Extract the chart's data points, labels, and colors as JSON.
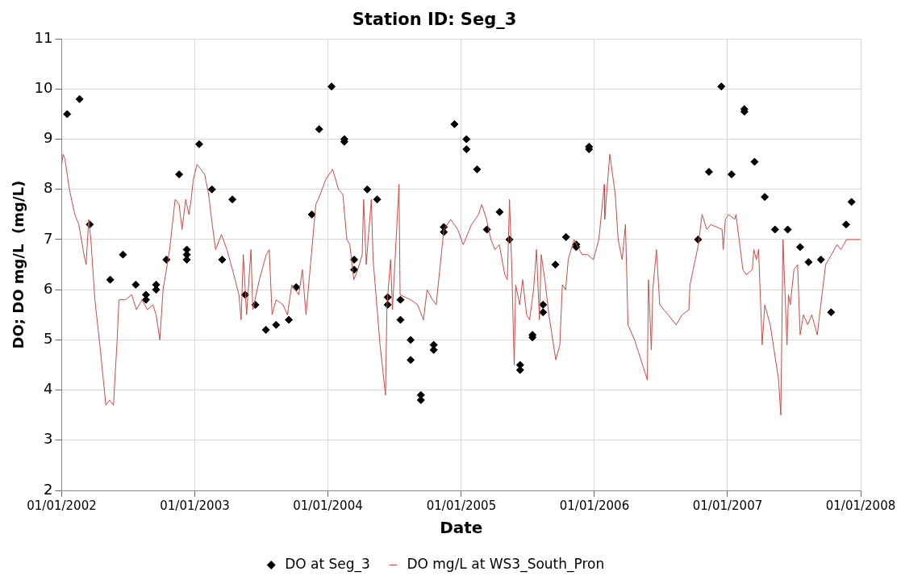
{
  "chart_data": {
    "type": "line",
    "title": "Station ID: Seg_3",
    "xlabel": "Date",
    "ylabel": "DO; DO mg/L  (mg/L)",
    "xlim": [
      "2002-01-01",
      "2008-01-01"
    ],
    "xticks": [
      {
        "value": "2002-01-01",
        "label": "01/01/2002"
      },
      {
        "value": "2003-01-01",
        "label": "01/01/2003"
      },
      {
        "value": "2004-01-01",
        "label": "01/01/2004"
      },
      {
        "value": "2005-01-01",
        "label": "01/01/2005"
      },
      {
        "value": "2006-01-01",
        "label": "01/01/2006"
      },
      {
        "value": "2007-01-01",
        "label": "01/01/2007"
      },
      {
        "value": "2008-01-01",
        "label": "01/01/2008"
      }
    ],
    "ylim": [
      2,
      11
    ],
    "yticks": [
      2,
      3,
      4,
      5,
      6,
      7,
      8,
      9,
      10,
      11
    ],
    "grid": true,
    "legend": "bottom",
    "series": [
      {
        "name": "DO at Seg_3",
        "type": "scatter",
        "marker": "diamond",
        "color": "#000000",
        "x": [
          "2002-01-16",
          "2002-02-19",
          "2002-03-19",
          "2002-05-14",
          "2002-06-18",
          "2002-07-23",
          "2002-08-20",
          "2002-08-20",
          "2002-09-17",
          "2002-09-17",
          "2002-10-15",
          "2002-11-19",
          "2002-12-10",
          "2002-12-10",
          "2002-12-10",
          "2003-01-13",
          "2003-02-17",
          "2003-03-17",
          "2003-04-14",
          "2003-05-19",
          "2003-06-16",
          "2003-07-15",
          "2003-08-12",
          "2003-09-16",
          "2003-10-06",
          "2003-11-18",
          "2003-12-08",
          "2004-01-11",
          "2004-02-15",
          "2004-02-15",
          "2004-03-13",
          "2004-03-13",
          "2004-04-18",
          "2004-05-15",
          "2004-06-13",
          "2004-06-13",
          "2004-07-18",
          "2004-07-18",
          "2004-08-15",
          "2004-08-15",
          "2004-09-12",
          "2004-09-12",
          "2004-10-17",
          "2004-10-17",
          "2004-11-14",
          "2004-11-14",
          "2004-12-13",
          "2005-01-15",
          "2005-01-15",
          "2005-02-13",
          "2005-03-12",
          "2005-04-16",
          "2005-05-13",
          "2005-06-11",
          "2005-06-11",
          "2005-07-15",
          "2005-07-15",
          "2005-08-13",
          "2005-08-13",
          "2005-09-16",
          "2005-10-15",
          "2005-11-12",
          "2005-11-12",
          "2005-12-17",
          "2005-12-17",
          "2006-10-12",
          "2006-11-11",
          "2006-12-15",
          "2007-01-12",
          "2007-02-16",
          "2007-02-16",
          "2007-03-16",
          "2007-04-13",
          "2007-05-11",
          "2007-06-15",
          "2007-07-19",
          "2007-08-11",
          "2007-09-14",
          "2007-10-12",
          "2007-11-22",
          "2007-12-07"
        ],
        "values": [
          9.5,
          9.8,
          7.3,
          6.2,
          6.7,
          6.1,
          5.9,
          5.8,
          6.1,
          6.0,
          6.6,
          8.3,
          6.8,
          6.7,
          6.6,
          8.9,
          8.0,
          6.6,
          7.8,
          5.9,
          5.7,
          5.2,
          5.3,
          5.4,
          6.05,
          7.5,
          9.2,
          10.05,
          9.0,
          8.95,
          6.6,
          6.4,
          8.0,
          7.8,
          5.85,
          5.7,
          5.8,
          5.4,
          5.0,
          4.6,
          3.9,
          3.8,
          4.9,
          4.8,
          7.25,
          7.15,
          9.3,
          9.0,
          8.8,
          8.4,
          7.2,
          7.55,
          7.0,
          4.5,
          4.4,
          5.1,
          5.05,
          5.7,
          5.55,
          6.5,
          7.05,
          6.9,
          6.85,
          8.85,
          8.8,
          7.0,
          8.35,
          10.05,
          8.3,
          9.6,
          9.55,
          8.55,
          7.85,
          7.2,
          7.2,
          6.85,
          6.55,
          6.6,
          5.55,
          7.3,
          7.75
        ]
      },
      {
        "name": "DO mg/L at WS3_South_Pron",
        "type": "line",
        "marker": "none",
        "color": "#d04848",
        "x": [
          "2002-01-01",
          "2002-01-05",
          "2002-01-10",
          "2002-01-22",
          "2002-02-06",
          "2002-02-17",
          "2002-03-03",
          "2002-03-09",
          "2002-03-16",
          "2002-03-22",
          "2002-04-02",
          "2002-04-17",
          "2002-05-02",
          "2002-05-12",
          "2002-05-23",
          "2002-06-02",
          "2002-06-07",
          "2002-06-25",
          "2002-07-12",
          "2002-07-25",
          "2002-08-09",
          "2002-08-24",
          "2002-09-08",
          "2002-09-17",
          "2002-09-27",
          "2002-10-06",
          "2002-10-24",
          "2002-11-08",
          "2002-11-19",
          "2002-11-27",
          "2002-12-07",
          "2002-12-16",
          "2002-12-22",
          "2002-12-28",
          "2003-01-07",
          "2003-01-28",
          "2003-02-08",
          "2003-02-16",
          "2003-02-27",
          "2003-03-15",
          "2003-03-30",
          "2003-04-18",
          "2003-05-02",
          "2003-05-08",
          "2003-05-14",
          "2003-05-23",
          "2003-06-04",
          "2003-06-09",
          "2003-06-27",
          "2003-07-16",
          "2003-07-24",
          "2003-08-01",
          "2003-08-12",
          "2003-08-31",
          "2003-09-12",
          "2003-09-24",
          "2003-10-13",
          "2003-10-23",
          "2003-11-02",
          "2003-11-13",
          "2003-11-29",
          "2003-12-11",
          "2003-12-26",
          "2004-01-14",
          "2004-01-30",
          "2004-02-11",
          "2004-02-22",
          "2004-03-01",
          "2004-03-12",
          "2004-03-23",
          "2004-04-04",
          "2004-04-08",
          "2004-04-15",
          "2004-04-29",
          "2004-05-04",
          "2004-05-23",
          "2004-06-07",
          "2004-06-11",
          "2004-06-21",
          "2004-06-26",
          "2004-07-14",
          "2004-07-17",
          "2004-08-15",
          "2004-09-03",
          "2004-09-19",
          "2004-09-29",
          "2004-10-14",
          "2004-10-24",
          "2004-11-14",
          "2004-12-03",
          "2004-12-22",
          "2005-01-06",
          "2005-01-29",
          "2005-02-17",
          "2005-02-26",
          "2005-03-11",
          "2005-03-23",
          "2005-04-03",
          "2005-04-15",
          "2005-04-30",
          "2005-05-07",
          "2005-05-13",
          "2005-05-19",
          "2005-05-26",
          "2005-05-30",
          "2005-06-10",
          "2005-06-18",
          "2005-06-29",
          "2005-07-07",
          "2005-07-18",
          "2005-07-26",
          "2005-08-03",
          "2005-08-08",
          "2005-08-18",
          "2005-08-29",
          "2005-09-17",
          "2005-09-28",
          "2005-10-05",
          "2005-10-14",
          "2005-10-21",
          "2005-11-06",
          "2005-11-28",
          "2005-12-13",
          "2005-12-29",
          "2006-01-13",
          "2006-01-28",
          "2006-01-29",
          "2006-02-12",
          "2006-02-27",
          "2006-03-07",
          "2006-03-18",
          "2006-03-27",
          "2006-04-03",
          "2006-04-21",
          "2006-05-26",
          "2006-05-29",
          "2006-06-06",
          "2006-06-10",
          "2006-06-20",
          "2006-06-29",
          "2006-07-22",
          "2006-08-13",
          "2006-08-29",
          "2006-09-17",
          "2006-09-20",
          "2006-10-13",
          "2006-10-23",
          "2006-11-05",
          "2006-11-16",
          "2006-12-17",
          "2006-12-20",
          "2006-12-26",
          "2007-01-04",
          "2007-01-21",
          "2007-01-24",
          "2007-02-12",
          "2007-02-21",
          "2007-03-10",
          "2007-03-14",
          "2007-03-21",
          "2007-03-27",
          "2007-04-06",
          "2007-04-13",
          "2007-04-28",
          "2007-05-21",
          "2007-05-27",
          "2007-06-02",
          "2007-06-13",
          "2007-06-17",
          "2007-06-22",
          "2007-07-02",
          "2007-07-12",
          "2007-07-19",
          "2007-07-28",
          "2007-08-09",
          "2007-08-20",
          "2007-09-04",
          "2007-09-12",
          "2007-09-27",
          "2007-10-13",
          "2007-10-28",
          "2007-11-08",
          "2007-11-23",
          "2007-12-12",
          "2007-12-31"
        ],
        "values": [
          8.5,
          8.7,
          8.6,
          8.0,
          7.5,
          7.3,
          6.7,
          6.5,
          7.4,
          7.0,
          5.8,
          4.8,
          3.7,
          3.8,
          3.7,
          5.0,
          5.8,
          5.8,
          5.9,
          5.6,
          5.8,
          5.6,
          5.7,
          5.5,
          5.0,
          6.0,
          6.8,
          7.8,
          7.7,
          7.2,
          7.8,
          7.5,
          7.8,
          8.2,
          8.5,
          8.3,
          7.9,
          7.4,
          6.8,
          7.1,
          6.8,
          6.3,
          5.9,
          5.4,
          6.7,
          5.5,
          6.8,
          5.6,
          6.2,
          6.7,
          6.8,
          5.5,
          5.8,
          5.7,
          5.5,
          6.1,
          5.9,
          6.4,
          5.5,
          6.4,
          7.7,
          7.9,
          8.2,
          8.4,
          8.0,
          7.9,
          7.0,
          6.9,
          6.2,
          6.4,
          6.7,
          7.8,
          6.5,
          7.8,
          6.6,
          4.9,
          3.9,
          5.7,
          6.6,
          5.6,
          8.1,
          5.9,
          5.8,
          5.7,
          5.4,
          6.0,
          5.8,
          5.7,
          7.2,
          7.4,
          7.2,
          6.9,
          7.3,
          7.5,
          7.7,
          7.4,
          7.0,
          6.8,
          6.9,
          6.3,
          6.2,
          7.8,
          6.5,
          4.5,
          6.1,
          5.7,
          6.2,
          5.5,
          5.4,
          6.0,
          6.8,
          5.4,
          6.7,
          6.2,
          5.5,
          4.6,
          4.9,
          6.1,
          6.0,
          6.6,
          7.0,
          6.7,
          6.7,
          6.6,
          7.0,
          8.1,
          7.4,
          8.7,
          7.9,
          7.0,
          6.6,
          7.3,
          5.3,
          5.0,
          4.2,
          6.2,
          4.8,
          6.0,
          6.8,
          5.7,
          5.5,
          5.3,
          5.5,
          5.6,
          6.1,
          6.9,
          7.5,
          7.2,
          7.3,
          7.2,
          6.8,
          7.4,
          7.5,
          7.4,
          7.5,
          6.4,
          6.3,
          6.4,
          6.8,
          6.6,
          6.8,
          4.9,
          5.7,
          5.3,
          4.2,
          3.5,
          7.0,
          4.9,
          5.9,
          5.7,
          6.4,
          6.5,
          5.1,
          5.5,
          5.3,
          5.5,
          5.1,
          5.6,
          6.5,
          6.7,
          6.9,
          6.8,
          7.0,
          7.0,
          7.0
        ]
      }
    ]
  }
}
